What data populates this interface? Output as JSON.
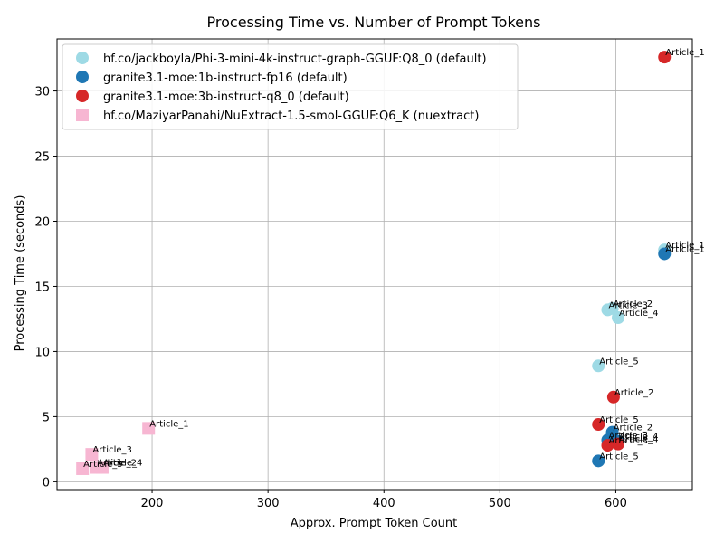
{
  "chart_data": {
    "type": "scatter",
    "title": "Processing Time vs. Number of Prompt Tokens",
    "xlabel": "Approx. Prompt Token Count",
    "ylabel": "Processing Time (seconds)",
    "xlim": [
      118,
      666
    ],
    "ylim": [
      -0.6,
      34.0
    ],
    "xticks": [
      200,
      300,
      400,
      500,
      600
    ],
    "yticks": [
      0,
      5,
      10,
      15,
      20,
      25,
      30
    ],
    "grid": true,
    "legend_position": "top-left",
    "series": [
      {
        "name": "hf.co/jackboyla/Phi-3-mini-4k-instruct-graph-GGUF:Q8_0 (default)",
        "color": "#9edae5",
        "marker": "circle",
        "points": [
          {
            "label": "Article_1",
            "x": 642,
            "y": 17.8
          },
          {
            "label": "Article_2",
            "x": 597,
            "y": 13.3
          },
          {
            "label": "Article_3",
            "x": 593,
            "y": 13.2
          },
          {
            "label": "Article_4",
            "x": 602,
            "y": 12.6
          },
          {
            "label": "Article_5",
            "x": 585,
            "y": 8.9
          }
        ]
      },
      {
        "name": "granite3.1-moe:1b-instruct-fp16 (default)",
        "color": "#1f77b4",
        "marker": "circle",
        "points": [
          {
            "label": "Article_1",
            "x": 642,
            "y": 17.5
          },
          {
            "label": "Article_2",
            "x": 597,
            "y": 3.8
          },
          {
            "label": "Article_3",
            "x": 593,
            "y": 3.2
          },
          {
            "label": "Article_4",
            "x": 602,
            "y": 3.1
          },
          {
            "label": "Article_5",
            "x": 585,
            "y": 1.6
          }
        ]
      },
      {
        "name": "granite3.1-moe:3b-instruct-q8_0 (default)",
        "color": "#d62728",
        "marker": "circle",
        "points": [
          {
            "label": "Article_1",
            "x": 642,
            "y": 32.6
          },
          {
            "label": "Article_2",
            "x": 598,
            "y": 6.5
          },
          {
            "label": "Article_5",
            "x": 585,
            "y": 4.4
          },
          {
            "label": "Article_3",
            "x": 593,
            "y": 2.8
          },
          {
            "label": "Article_4",
            "x": 602,
            "y": 2.9
          }
        ]
      },
      {
        "name": "hf.co/MaziyarPanahi/NuExtract-1.5-smol-GGUF:Q6_K (nuextract)",
        "color": "#f7b6d2",
        "marker": "square",
        "points": [
          {
            "label": "Article_1",
            "x": 197,
            "y": 4.1
          },
          {
            "label": "Article_3",
            "x": 148,
            "y": 2.1
          },
          {
            "label": "Article_4",
            "x": 157,
            "y": 1.1
          },
          {
            "label": "Article_2",
            "x": 152,
            "y": 1.1
          },
          {
            "label": "Article_5",
            "x": 140,
            "y": 1.0
          }
        ]
      }
    ]
  }
}
